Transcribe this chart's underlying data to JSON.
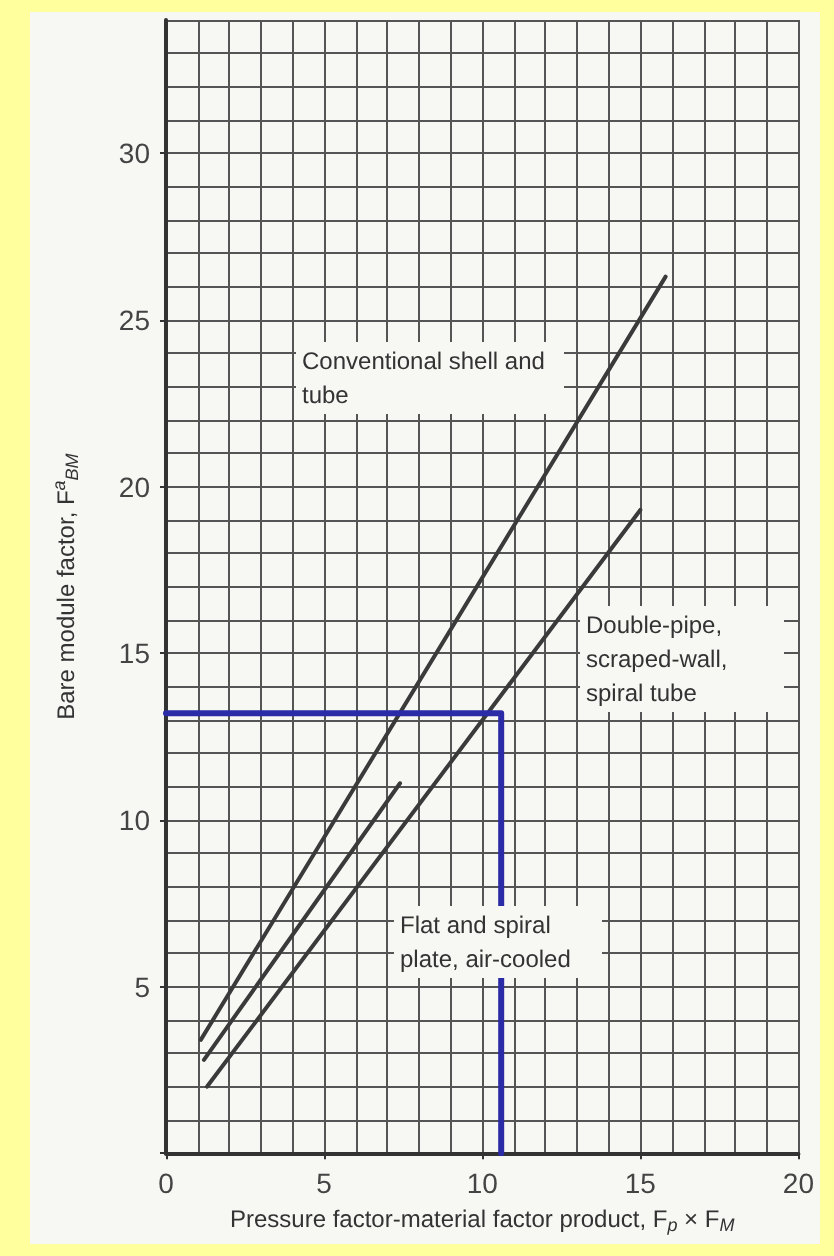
{
  "chart_data": {
    "type": "line",
    "xlabel": "Pressure factor-material factor product, F$_{p}$ × F$_{M}$",
    "ylabel": "Bare module factor, F$^{a}$$_{BM}$",
    "series": [
      {
        "color": "#3a3a3a",
        "x": [
          1.1,
          15.8
        ],
        "values": [
          3.4,
          26.3
        ]
      },
      {
        "color": "#3a3a3a",
        "x": [
          1.2,
          7.4
        ],
        "values": [
          2.8,
          11.1
        ]
      },
      {
        "color": "#3a3a3a",
        "x": [
          1.3,
          15.0
        ],
        "values": [
          2.0,
          19.3
        ]
      },
      {
        "color": "#2b2ba8",
        "x": [
          0,
          10.6,
          10.6
        ],
        "values": [
          13.2,
          13.2,
          0
        ]
      }
    ],
    "xlim": [
      0,
      20
    ],
    "xticks": [
      0,
      5,
      10,
      15,
      20
    ],
    "ylim": [
      0,
      34
    ],
    "yticks": [
      {
        "value": 0,
        "label": null
      },
      5,
      10,
      15,
      20,
      25,
      30
    ],
    "grid": true,
    "marker": "none",
    "line_style": "solid",
    "annotations": [
      "Conventional shell and tube",
      "Double-pipe, scraped-wall, spiral tube",
      "Flat and spiral plate, air-cooled"
    ]
  }
}
